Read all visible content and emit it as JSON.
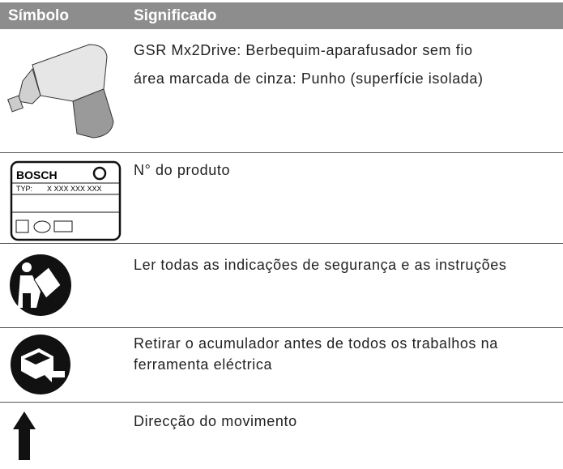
{
  "table": {
    "header": [
      "Símbolo",
      "Significado"
    ],
    "rows": [
      {
        "lines": [
          "GSR Mx2Drive: Berbequim-aparafusador sem fio",
          "área marcada de cinza: Punho (superfície isolada)"
        ]
      },
      {
        "lines": [
          "N° do produto"
        ]
      },
      {
        "lines": [
          "Ler todas as indicações de segurança e as instruções"
        ]
      },
      {
        "lines": [
          "Retirar o acumulador antes de todos os trabalhos na",
          "ferramenta eléctrica"
        ]
      },
      {
        "lines": [
          "Direcção do movimento"
        ]
      }
    ]
  },
  "label": {
    "brand": "BOSCH",
    "type": "TYP:",
    "number": "X XXX XXX XXX"
  }
}
